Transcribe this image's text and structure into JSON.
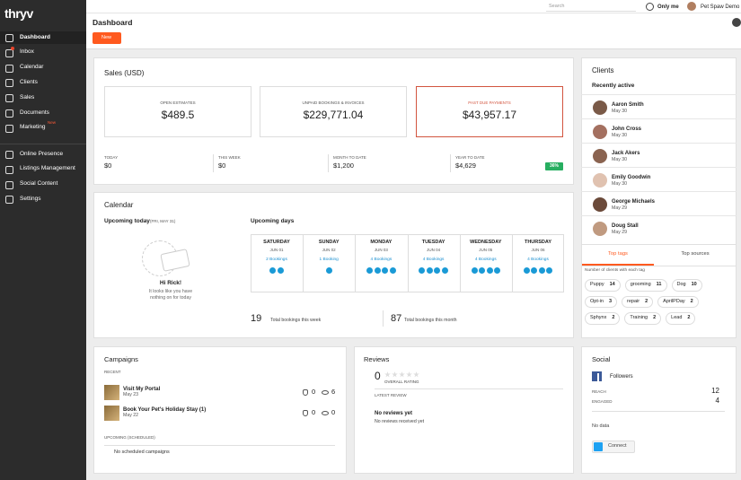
{
  "brand": "thryv",
  "topbar": {
    "search": "Search",
    "filter": "Only me",
    "user": "Pet Spaw Demo"
  },
  "sidebar": {
    "items": [
      "Dashboard",
      "Inbox",
      "Calendar",
      "Clients",
      "Sales",
      "Documents",
      "Marketing",
      "Online Presence",
      "Listings Management",
      "Social Content",
      "Settings"
    ],
    "badge": "New"
  },
  "header": {
    "title": "Dashboard",
    "button": "New"
  },
  "sales": {
    "title": "Sales (USD)",
    "cards": [
      {
        "label": "OPEN ESTIMATES",
        "value": "$489.5"
      },
      {
        "label": "UNPAID BOOKINGS & INVOICES",
        "value": "$229,771.04"
      },
      {
        "label": "PAST DUE PAYMENTS",
        "value": "$43,957.17"
      }
    ],
    "periods": [
      {
        "label": "TODAY",
        "value": "$0"
      },
      {
        "label": "THIS WEEK",
        "value": "$0"
      },
      {
        "label": "MONTH TO DATE",
        "value": "$1,200"
      },
      {
        "label": "YEAR TO DATE",
        "value": "$4,629",
        "badge": "36%"
      }
    ]
  },
  "calendar": {
    "title": "Calendar",
    "upcoming_today": "Upcoming today",
    "today_date": "(FRI, MAY 31)",
    "greeting": "Hi Rick!",
    "empty_text": "It looks like you have nothing on for today",
    "upcoming_days": "Upcoming days",
    "days": [
      {
        "day": "SATURDAY",
        "date": "JUN 01",
        "bookings": 2,
        "bookings_label": "2 Bookings"
      },
      {
        "day": "SUNDAY",
        "date": "JUN 02",
        "bookings": 1,
        "bookings_label": "1 Booking"
      },
      {
        "day": "MONDAY",
        "date": "JUN 03",
        "bookings": 4,
        "bookings_label": "4 Bookings"
      },
      {
        "day": "TUESDAY",
        "date": "JUN 04",
        "bookings": 4,
        "bookings_label": "4 Bookings"
      },
      {
        "day": "WEDNESDAY",
        "date": "JUN 05",
        "bookings": 4,
        "bookings_label": "4 Bookings"
      },
      {
        "day": "THURSDAY",
        "date": "JUN 06",
        "bookings": 4,
        "bookings_label": "4 Bookings"
      }
    ],
    "totals": [
      {
        "value": 19,
        "label": "Total bookings this week"
      },
      {
        "value": 87,
        "label": "Total bookings this month"
      }
    ]
  },
  "clients": {
    "title": "Clients",
    "subtitle": "Recently active",
    "list": [
      {
        "name": "Aaron Smith",
        "date": "May 30"
      },
      {
        "name": "John Cross",
        "date": "May 30"
      },
      {
        "name": "Jack Akers",
        "date": "May 30"
      },
      {
        "name": "Emily Goodwin",
        "date": "May 30"
      },
      {
        "name": "George Michaels",
        "date": "May 29"
      },
      {
        "name": "Doug Stall",
        "date": "May 29"
      }
    ],
    "tabs": [
      "Top tags",
      "Top sources"
    ],
    "tags_caption": "Number of clients with each tag",
    "tags": [
      {
        "name": "Puppy",
        "count": 14
      },
      {
        "name": "grooming",
        "count": 11
      },
      {
        "name": "Dog",
        "count": 10
      },
      {
        "name": "Opt-in",
        "count": 3
      },
      {
        "name": "repair",
        "count": 2
      },
      {
        "name": "AprilPDay",
        "count": 2
      },
      {
        "name": "Sphynx",
        "count": 2
      },
      {
        "name": "Training",
        "count": 2
      },
      {
        "name": "Lead",
        "count": 2
      }
    ]
  },
  "campaigns": {
    "title": "Campaigns",
    "recent": "RECENT",
    "items": [
      {
        "name": "Visit My Portal",
        "date": "May 23",
        "clicks": 0,
        "views": 6
      },
      {
        "name": "Book Your Pet's Holiday Stay (1)",
        "date": "May 22",
        "clicks": 0,
        "views": 0
      }
    ],
    "upcoming": "UPCOMING (SCHEDULED)",
    "empty": "No scheduled campaigns"
  },
  "reviews": {
    "title": "Reviews",
    "rating": 0,
    "rating_label": "OVERALL RATING",
    "latest": "LATEST REVIEW",
    "empty_title": "No reviews yet",
    "empty_text": "No reviews received yet"
  },
  "social": {
    "title": "Social",
    "followers": "Followers",
    "stats": [
      {
        "label": "REACH",
        "value": 12
      },
      {
        "label": "ENGAGED",
        "value": 4
      }
    ],
    "no_data": "No data",
    "connect": "Connect"
  }
}
